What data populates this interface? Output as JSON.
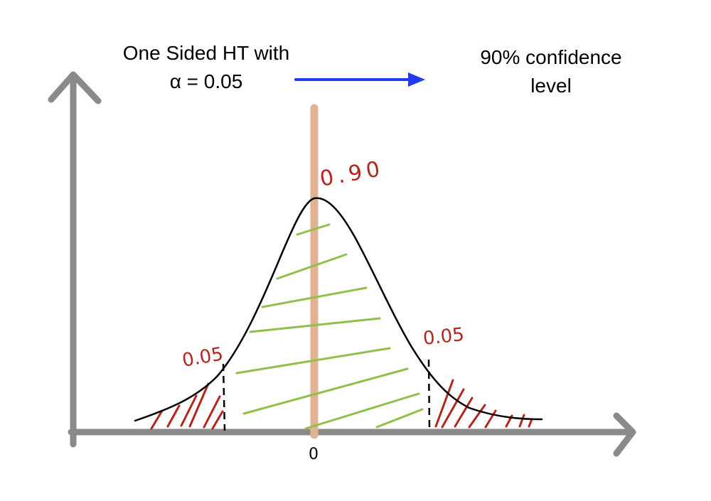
{
  "title": {
    "line1": "One Sided HT with",
    "line2": "α = 0.05"
  },
  "result": {
    "line1": "90% confidence",
    "line2": "level"
  },
  "regions": {
    "left_tail": "0.05",
    "center": "0.90",
    "right_tail": "0.05"
  },
  "axis": {
    "origin_label": "0"
  },
  "colors": {
    "axis": "#8a8a8a",
    "curve": "#000000",
    "center_line": "#e0b493",
    "center_hatch": "#8fc04a",
    "tail_hatch": "#b3261e",
    "tail_label": "#b3261e",
    "arrow": "#1f3bf2"
  }
}
